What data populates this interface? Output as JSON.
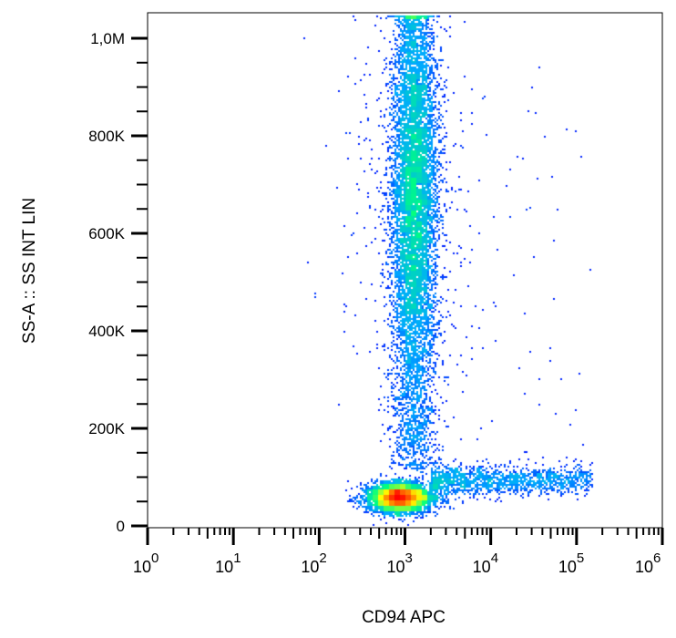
{
  "chart_data": {
    "type": "scatter",
    "subtype": "density dot plot (jet colormap)",
    "xlabel": "CD94 APC",
    "ylabel": "SS-A :: SS INT LIN",
    "x_scale": "log",
    "xlim": [
      1,
      1000000
    ],
    "ylim": [
      0,
      1050000
    ],
    "x_ticks": [
      {
        "base": "10",
        "exp": "0"
      },
      {
        "base": "10",
        "exp": "1"
      },
      {
        "base": "10",
        "exp": "2"
      },
      {
        "base": "10",
        "exp": "3"
      },
      {
        "base": "10",
        "exp": "4"
      },
      {
        "base": "10",
        "exp": "5"
      },
      {
        "base": "10",
        "exp": "6"
      }
    ],
    "y_ticks": [
      {
        "v": 0,
        "label": "0"
      },
      {
        "v": 200000,
        "label": "200K"
      },
      {
        "v": 400000,
        "label": "400K"
      },
      {
        "v": 600000,
        "label": "600K"
      },
      {
        "v": 800000,
        "label": "800K"
      },
      {
        "v": 1000000,
        "label": "1,0M"
      }
    ],
    "populations": [
      {
        "x_center": 1400,
        "x_spread_decades": 0.13,
        "y_range": [
          120000,
          1050000
        ],
        "y_peak": 680000,
        "count": 9000
      },
      {
        "x_center": 850,
        "x_spread_decades": 0.18,
        "y_center": 60000,
        "y_spread": 15000,
        "count": 4500
      },
      {
        "x_range": [
          2000,
          150000
        ],
        "y_center": 95000,
        "y_spread": 15000,
        "count": 1400
      }
    ],
    "colormap": [
      "#0000ff",
      "#00aaff",
      "#00ff80",
      "#ffff00",
      "#ff8000",
      "#ff0000"
    ],
    "grid": false,
    "legend": "none"
  }
}
